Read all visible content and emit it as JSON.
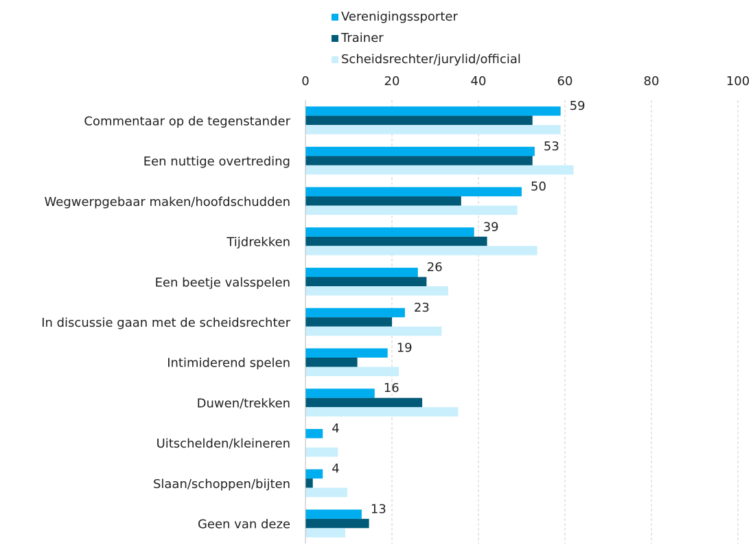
{
  "chart_data": {
    "type": "bar",
    "orientation": "horizontal",
    "categories": [
      "Commentaar op de tegenstander",
      "Een nuttige overtreding",
      "Wegwerpgebaar maken/hoofdschudden",
      "Tijdrekken",
      "Een beetje valsspelen",
      "In discussie gaan met de scheidsrechter",
      "Intimiderend spelen",
      "Duwen/trekken",
      "Uitschelden/kleineren",
      "Slaan/schoppen/bijten",
      "Geen van deze"
    ],
    "series": [
      {
        "name": "Verenigingssporter",
        "color": "#00aeef",
        "values": [
          59,
          53,
          50,
          39,
          26,
          23,
          19,
          16,
          4,
          4,
          13
        ],
        "data_labels": true
      },
      {
        "name": "Trainer",
        "color": "#005a78",
        "values": [
          52.5,
          52.5,
          36,
          42,
          28,
          20,
          12,
          27,
          null,
          1.7,
          14.7
        ]
      },
      {
        "name": "Scheidsrechter/jurylid/official",
        "color": "#c9effc",
        "values": [
          59,
          62,
          49,
          53.6,
          33,
          31.5,
          21.6,
          35.3,
          7.5,
          9.7,
          9.2
        ]
      }
    ],
    "xlim": [
      0,
      100
    ],
    "xticks": [
      0,
      20,
      40,
      60,
      80,
      100
    ],
    "grid": true,
    "legend": "top"
  }
}
